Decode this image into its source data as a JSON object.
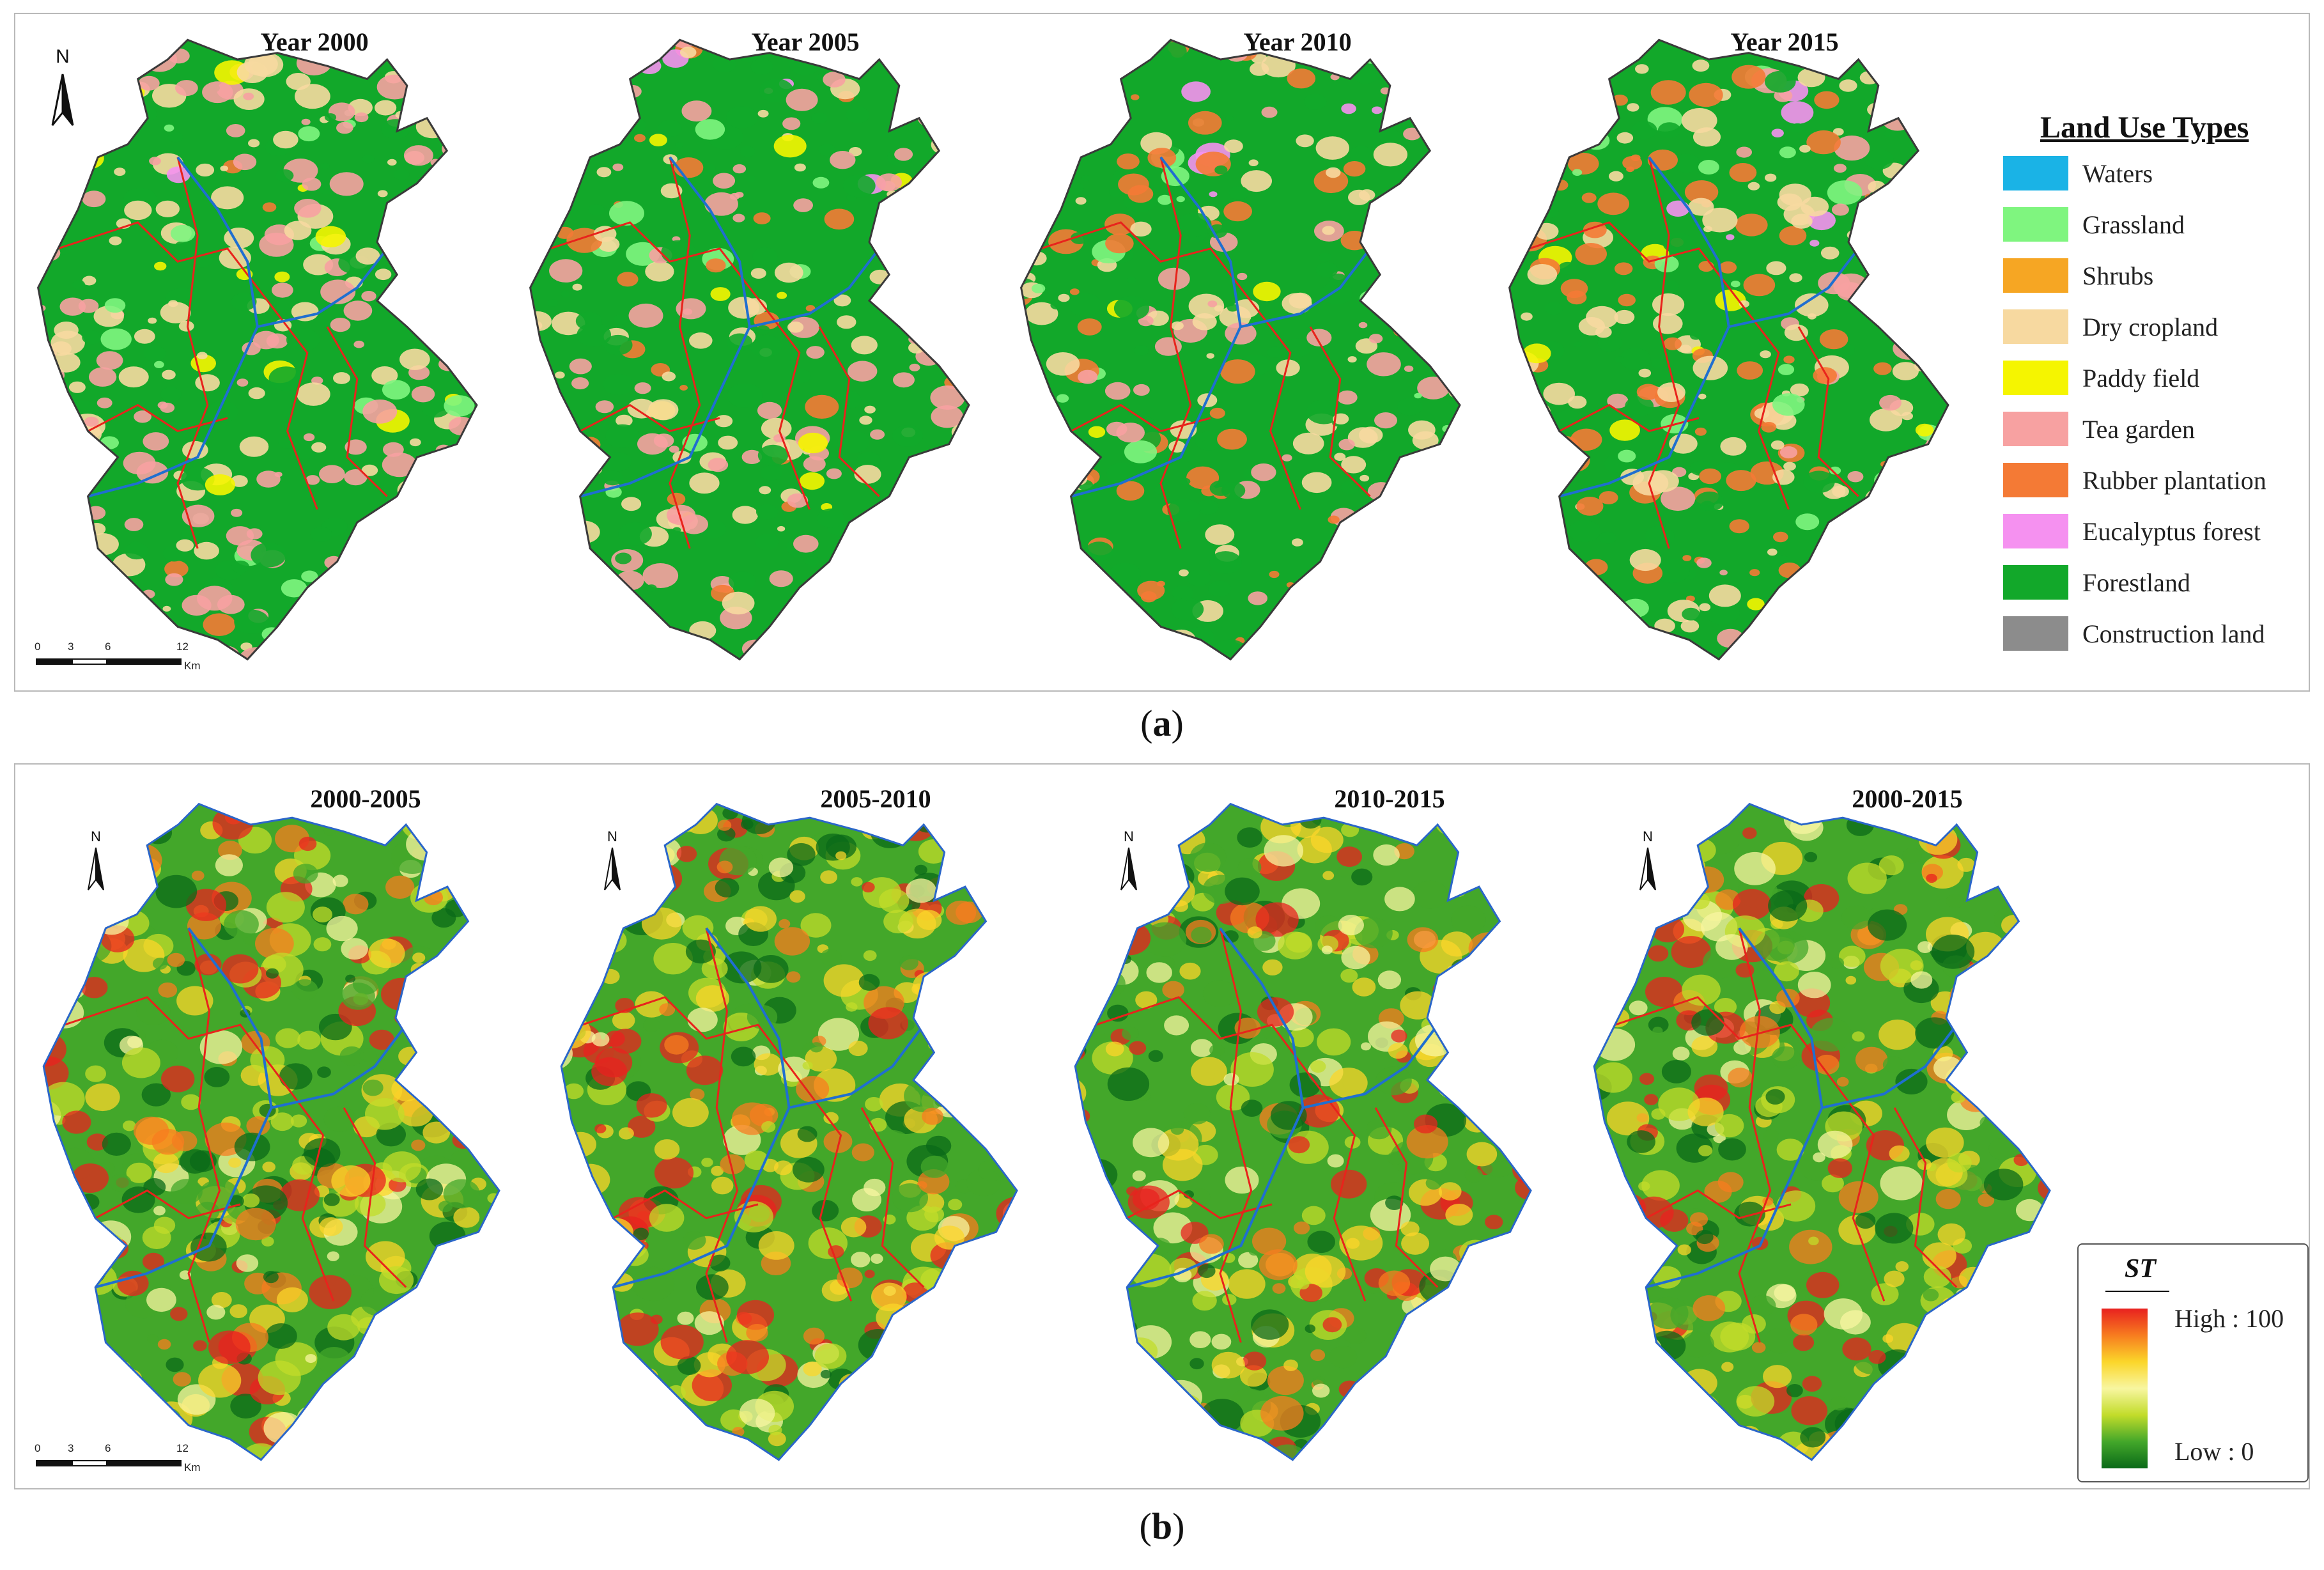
{
  "panel_a": {
    "label_letter": "a",
    "label_left": "(",
    "label_right": ")",
    "maps": [
      {
        "title": "Year 2000",
        "rubber_level": 0.05,
        "eucalyptus_level": 0.02
      },
      {
        "title": "Year 2005",
        "rubber_level": 0.35,
        "eucalyptus_level": 0.3
      },
      {
        "title": "Year 2010",
        "rubber_level": 0.7,
        "eucalyptus_level": 0.5
      },
      {
        "title": "Year 2015",
        "rubber_level": 0.9,
        "eucalyptus_level": 0.6
      }
    ],
    "legend": {
      "title": "Land Use Types",
      "items": [
        {
          "label": "Waters",
          "color": "#1ab3e6"
        },
        {
          "label": "Grassland",
          "color": "#7ff57f"
        },
        {
          "label": "Shrubs",
          "color": "#f6a623"
        },
        {
          "label": "Dry cropland",
          "color": "#f7d9a0"
        },
        {
          "label": "Paddy field",
          "color": "#f5f500"
        },
        {
          "label": "Tea garden",
          "color": "#f7a1a1"
        },
        {
          "label": "Rubber plantation",
          "color": "#f47a35"
        },
        {
          "label": "Eucalyptus forest",
          "color": "#f591f0"
        },
        {
          "label": "Forestland",
          "color": "#12a82a"
        },
        {
          "label": "Construction land",
          "color": "#8c8c8c"
        }
      ]
    },
    "scalebar": {
      "ticks": [
        "0",
        "3",
        "6",
        "12"
      ],
      "unit": "Km"
    },
    "north_label": "N"
  },
  "panel_b": {
    "label_letter": "b",
    "label_left": "(",
    "label_right": ")",
    "maps": [
      {
        "title": "2000-2005"
      },
      {
        "title": "2005-2010"
      },
      {
        "title": "2010-2015"
      },
      {
        "title": "2000-2015"
      }
    ],
    "st_legend": {
      "title": "ST",
      "high": "High : 100",
      "low": "Low : 0",
      "colors": [
        "#e8211f",
        "#f77c1f",
        "#fbd62a",
        "#f8f6a0",
        "#c2dc2a",
        "#43a72a",
        "#0a6a18"
      ]
    },
    "scalebar": {
      "ticks": [
        "0",
        "3",
        "6",
        "12"
      ],
      "unit": "Km"
    },
    "north_label": "N"
  }
}
